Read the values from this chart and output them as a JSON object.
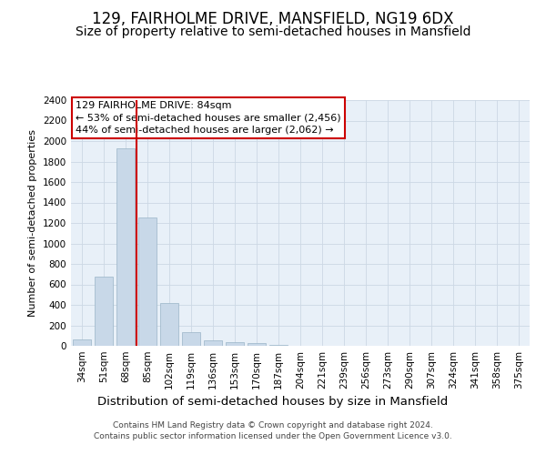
{
  "title": "129, FAIRHOLME DRIVE, MANSFIELD, NG19 6DX",
  "subtitle": "Size of property relative to semi-detached houses in Mansfield",
  "xlabel": "Distribution of semi-detached houses by size in Mansfield",
  "ylabel": "Number of semi-detached properties",
  "categories": [
    "34sqm",
    "51sqm",
    "68sqm",
    "85sqm",
    "102sqm",
    "119sqm",
    "136sqm",
    "153sqm",
    "170sqm",
    "187sqm",
    "204sqm",
    "221sqm",
    "239sqm",
    "256sqm",
    "273sqm",
    "290sqm",
    "307sqm",
    "324sqm",
    "341sqm",
    "358sqm",
    "375sqm"
  ],
  "values": [
    65,
    680,
    1930,
    1250,
    420,
    135,
    50,
    40,
    25,
    12,
    0,
    0,
    0,
    0,
    0,
    0,
    0,
    0,
    0,
    0,
    0
  ],
  "bar_color": "#c8d8e8",
  "bar_edge_color": "#9ab4c8",
  "vline_x": 2.5,
  "vline_color": "#cc0000",
  "annotation_text": "129 FAIRHOLME DRIVE: 84sqm\n← 53% of semi-detached houses are smaller (2,456)\n44% of semi-detached houses are larger (2,062) →",
  "annotation_box_facecolor": "#ffffff",
  "annotation_box_edgecolor": "#cc0000",
  "ylim": [
    0,
    2400
  ],
  "yticks": [
    0,
    200,
    400,
    600,
    800,
    1000,
    1200,
    1400,
    1600,
    1800,
    2000,
    2200,
    2400
  ],
  "grid_color": "#ccd8e4",
  "axes_bg_color": "#e8f0f8",
  "title_fontsize": 12,
  "subtitle_fontsize": 10,
  "xlabel_fontsize": 9.5,
  "ylabel_fontsize": 8,
  "tick_fontsize": 7.5,
  "annotation_fontsize": 8,
  "footer_fontsize": 6.5,
  "footer_text": "Contains HM Land Registry data © Crown copyright and database right 2024.\nContains public sector information licensed under the Open Government Licence v3.0."
}
